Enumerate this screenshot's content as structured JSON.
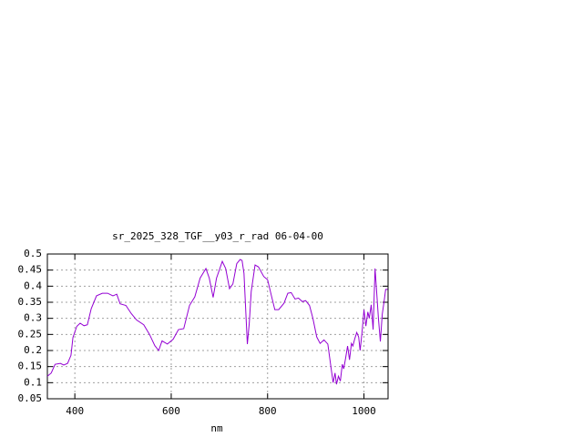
{
  "chart_data": {
    "type": "line",
    "title": "sr_2025_328_TGF__y03_r_rad 06-04-00",
    "x_label": "nm",
    "color": "#9400d3",
    "grid": true,
    "xlim": [
      343,
      1050
    ],
    "ylim": [
      0.05,
      0.5
    ],
    "xticks": [
      400,
      600,
      800,
      1000
    ],
    "yticks": [
      0.05,
      0.1,
      0.15,
      0.2,
      0.25,
      0.3,
      0.35,
      0.4,
      0.45,
      0.5
    ],
    "x": [
      343,
      351,
      359,
      370,
      377,
      385,
      392,
      396,
      404,
      411,
      419,
      426,
      434,
      445,
      457,
      468,
      479,
      487,
      494,
      506,
      517,
      528,
      543,
      555,
      566,
      574,
      581,
      592,
      604,
      615,
      626,
      638,
      649,
      660,
      672,
      679,
      687,
      694,
      706,
      713,
      721,
      728,
      736,
      743,
      747,
      751,
      755,
      758,
      762,
      766,
      774,
      781,
      792,
      800,
      808,
      815,
      823,
      834,
      842,
      849,
      857,
      864,
      872,
      879,
      887,
      894,
      902,
      909,
      917,
      925,
      932,
      936,
      940,
      943,
      947,
      951,
      955,
      958,
      962,
      966,
      970,
      974,
      977,
      981,
      985,
      989,
      992,
      996,
      1000,
      1004,
      1008,
      1011,
      1015,
      1019,
      1023,
      1026,
      1030,
      1034,
      1038,
      1042,
      1045,
      1049
    ],
    "values": [
      0.12,
      0.13,
      0.157,
      0.16,
      0.155,
      0.16,
      0.185,
      0.24,
      0.275,
      0.285,
      0.277,
      0.28,
      0.33,
      0.37,
      0.378,
      0.378,
      0.37,
      0.375,
      0.345,
      0.34,
      0.315,
      0.295,
      0.28,
      0.25,
      0.215,
      0.2,
      0.23,
      0.22,
      0.235,
      0.265,
      0.268,
      0.34,
      0.367,
      0.425,
      0.455,
      0.425,
      0.365,
      0.425,
      0.477,
      0.455,
      0.392,
      0.407,
      0.47,
      0.483,
      0.48,
      0.44,
      0.313,
      0.22,
      0.285,
      0.383,
      0.466,
      0.46,
      0.43,
      0.42,
      0.37,
      0.327,
      0.327,
      0.347,
      0.378,
      0.38,
      0.36,
      0.363,
      0.352,
      0.355,
      0.34,
      0.3,
      0.242,
      0.222,
      0.233,
      0.22,
      0.143,
      0.1,
      0.13,
      0.095,
      0.12,
      0.105,
      0.157,
      0.143,
      0.177,
      0.214,
      0.171,
      0.222,
      0.214,
      0.237,
      0.256,
      0.242,
      0.2,
      0.256,
      0.327,
      0.276,
      0.32,
      0.3,
      0.342,
      0.265,
      0.455,
      0.39,
      0.3,
      0.228,
      0.313,
      0.355,
      0.39,
      0.39
    ]
  }
}
